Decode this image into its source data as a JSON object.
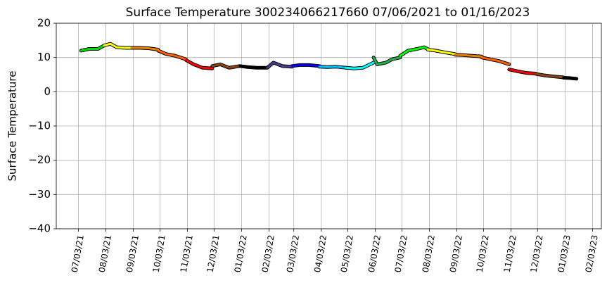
{
  "chart_data": {
    "type": "line",
    "title": "Surface Temperature 300234066217660  07/06/2021 to 01/16/2023",
    "ylabel": "Surface Temperature",
    "grid": true,
    "ylim": [
      -40,
      20
    ],
    "yticks": [
      {
        "value": -40,
        "label": "−40"
      },
      {
        "value": -30,
        "label": "−30"
      },
      {
        "value": -20,
        "label": "−20"
      },
      {
        "value": -10,
        "label": "−10"
      },
      0,
      10,
      20
    ],
    "xlim": [
      "2021-06-08",
      "2023-02-13"
    ],
    "xticks": [
      {
        "value": "2021-07-03",
        "label": "07/03/21"
      },
      {
        "value": "2021-08-03",
        "label": "08/03/21"
      },
      {
        "value": "2021-09-03",
        "label": "09/03/21"
      },
      {
        "value": "2021-10-03",
        "label": "10/03/21"
      },
      {
        "value": "2021-11-03",
        "label": "11/03/21"
      },
      {
        "value": "2021-12-03",
        "label": "12/03/21"
      },
      {
        "value": "2022-01-03",
        "label": "01/03/22"
      },
      {
        "value": "2022-02-03",
        "label": "02/03/22"
      },
      {
        "value": "2022-03-03",
        "label": "03/03/22"
      },
      {
        "value": "2022-04-03",
        "label": "04/03/22"
      },
      {
        "value": "2022-05-03",
        "label": "05/03/22"
      },
      {
        "value": "2022-06-03",
        "label": "06/03/22"
      },
      {
        "value": "2022-07-03",
        "label": "07/03/22"
      },
      {
        "value": "2022-08-03",
        "label": "08/03/22"
      },
      {
        "value": "2022-09-03",
        "label": "09/03/22"
      },
      {
        "value": "2022-10-03",
        "label": "10/03/22"
      },
      {
        "value": "2022-11-03",
        "label": "11/03/22"
      },
      {
        "value": "2022-12-03",
        "label": "12/03/22"
      },
      {
        "value": "2023-01-03",
        "label": "01/03/23"
      },
      {
        "value": "2023-02-03",
        "label": "02/03/23"
      }
    ],
    "series": [
      {
        "color": "#00e000",
        "x": [
          "2021-07-06",
          "2021-07-15",
          "2021-07-25",
          "2021-08-01"
        ],
        "values": [
          12,
          12.5,
          12.5,
          13.5
        ]
      },
      {
        "color": "#ffff00",
        "x": [
          "2021-08-01",
          "2021-08-08",
          "2021-08-15",
          "2021-08-25",
          "2021-09-01"
        ],
        "values": [
          13.5,
          14,
          13,
          12.8,
          12.8
        ]
      },
      {
        "color": "#e88000",
        "x": [
          "2021-09-01",
          "2021-09-10",
          "2021-09-20",
          "2021-10-01"
        ],
        "values": [
          12.8,
          12.8,
          12.7,
          12.3
        ]
      },
      {
        "color": "#ff6000",
        "x": [
          "2021-10-01",
          "2021-10-10",
          "2021-10-20",
          "2021-11-01"
        ],
        "values": [
          12,
          11,
          10.5,
          9.5
        ]
      },
      {
        "color": "#ff0000",
        "x": [
          "2021-11-01",
          "2021-11-10",
          "2021-11-20",
          "2021-12-01"
        ],
        "values": [
          9.3,
          8,
          7,
          6.8
        ]
      },
      {
        "color": "#8b4513",
        "x": [
          "2021-12-01",
          "2021-12-10",
          "2021-12-20",
          "2022-01-01"
        ],
        "values": [
          7.5,
          8,
          7,
          7.5
        ]
      },
      {
        "color": "#000000",
        "x": [
          "2022-01-01",
          "2022-01-10",
          "2022-01-20",
          "2022-02-01"
        ],
        "values": [
          7.5,
          7.2,
          7,
          7
        ]
      },
      {
        "color": "#483d8b",
        "x": [
          "2022-02-01",
          "2022-02-08",
          "2022-02-18",
          "2022-03-01"
        ],
        "values": [
          7,
          8.5,
          7.5,
          7.3
        ]
      },
      {
        "color": "#0000ff",
        "x": [
          "2022-03-01",
          "2022-03-10",
          "2022-03-20",
          "2022-04-01"
        ],
        "values": [
          7.5,
          7.8,
          7.8,
          7.5
        ]
      },
      {
        "color": "#00bfff",
        "x": [
          "2022-04-01",
          "2022-04-10",
          "2022-04-20",
          "2022-05-01"
        ],
        "values": [
          7.3,
          7.2,
          7.3,
          7
        ]
      },
      {
        "color": "#00ffff",
        "x": [
          "2022-05-01",
          "2022-05-10",
          "2022-05-20",
          "2022-06-01"
        ],
        "values": [
          7,
          6.8,
          7,
          8.5
        ]
      },
      {
        "color": "#22b14c",
        "x": [
          "2022-06-01",
          "2022-06-05",
          "2022-06-15",
          "2022-06-22",
          "2022-07-01"
        ],
        "values": [
          10,
          8,
          8.5,
          9.5,
          10
        ]
      },
      {
        "color": "#00ff00",
        "x": [
          "2022-07-01",
          "2022-07-10",
          "2022-07-20",
          "2022-07-28",
          "2022-08-01"
        ],
        "values": [
          10.5,
          12,
          12.5,
          13,
          12.5
        ]
      },
      {
        "color": "#ffff00",
        "x": [
          "2022-08-01",
          "2022-08-10",
          "2022-08-20",
          "2022-09-01"
        ],
        "values": [
          12.3,
          12,
          11.5,
          11
        ]
      },
      {
        "color": "#e88000",
        "x": [
          "2022-09-01",
          "2022-09-10",
          "2022-09-20",
          "2022-10-01"
        ],
        "values": [
          10.8,
          10.7,
          10.5,
          10.3
        ]
      },
      {
        "color": "#ff6000",
        "x": [
          "2022-10-01",
          "2022-10-10",
          "2022-10-20",
          "2022-11-01"
        ],
        "values": [
          10,
          9.5,
          9,
          8
        ]
      },
      {
        "color": "#ff0000",
        "x": [
          "2022-11-01",
          "2022-11-10",
          "2022-11-20",
          "2022-12-01"
        ],
        "values": [
          6.5,
          6,
          5.5,
          5.3
        ]
      },
      {
        "color": "#8b4513",
        "x": [
          "2022-12-01",
          "2022-12-10",
          "2022-12-20",
          "2023-01-01"
        ],
        "values": [
          5.2,
          4.8,
          4.5,
          4.2
        ]
      },
      {
        "color": "#000000",
        "x": [
          "2023-01-01",
          "2023-01-08",
          "2023-01-16"
        ],
        "values": [
          4.1,
          4,
          3.8
        ]
      }
    ]
  }
}
